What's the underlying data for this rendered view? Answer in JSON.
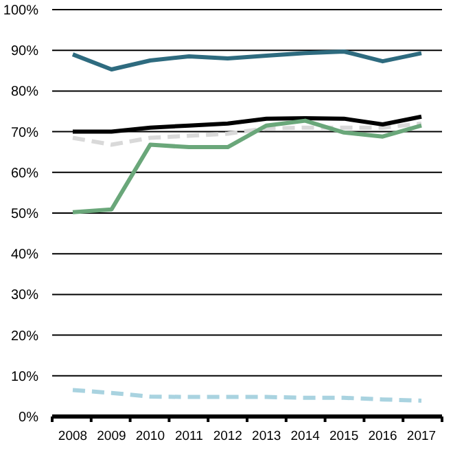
{
  "chart_data": {
    "type": "line",
    "categories": [
      "2008",
      "2009",
      "2010",
      "2011",
      "2012",
      "2013",
      "2014",
      "2015",
      "2016",
      "2017"
    ],
    "series": [
      {
        "color": "#2e6b7f",
        "line_style": "solid",
        "values": [
          89,
          85.3,
          87.5,
          88.5,
          88,
          88.7,
          89.3,
          89.7,
          87.3,
          89.3
        ]
      },
      {
        "color": "#d9d9d9",
        "line_style": "dashed",
        "values": [
          68.5,
          66.8,
          68.5,
          69,
          69.5,
          70.8,
          71,
          71,
          71,
          72
        ]
      },
      {
        "color": "#000000",
        "line_style": "solid",
        "values": [
          70,
          70,
          71,
          71.5,
          72,
          73.2,
          73.3,
          73.2,
          71.8,
          73.7
        ]
      },
      {
        "color": "#6aa77a",
        "line_style": "solid",
        "values": [
          50.2,
          50.9,
          66.8,
          66.2,
          66.2,
          71.5,
          72.7,
          69.8,
          68.8,
          71.5
        ]
      },
      {
        "color": "#a9d3e0",
        "line_style": "dashed",
        "values": [
          6.5,
          5.8,
          4.9,
          4.8,
          4.8,
          4.8,
          4.6,
          4.6,
          4.2,
          3.9
        ]
      }
    ],
    "ylim": [
      0,
      100
    ],
    "yticks": [
      {
        "value": 0,
        "label": "0%"
      },
      {
        "value": 10,
        "label": "10%"
      },
      {
        "value": 20,
        "label": "20%"
      },
      {
        "value": 30,
        "label": "30%"
      },
      {
        "value": 40,
        "label": "40%"
      },
      {
        "value": 50,
        "label": "50%"
      },
      {
        "value": 60,
        "label": "60%"
      },
      {
        "value": 70,
        "label": "70%"
      },
      {
        "value": 80,
        "label": "80%"
      },
      {
        "value": 90,
        "label": "90%"
      },
      {
        "value": 100,
        "label": "100%"
      }
    ],
    "grid": "y"
  }
}
